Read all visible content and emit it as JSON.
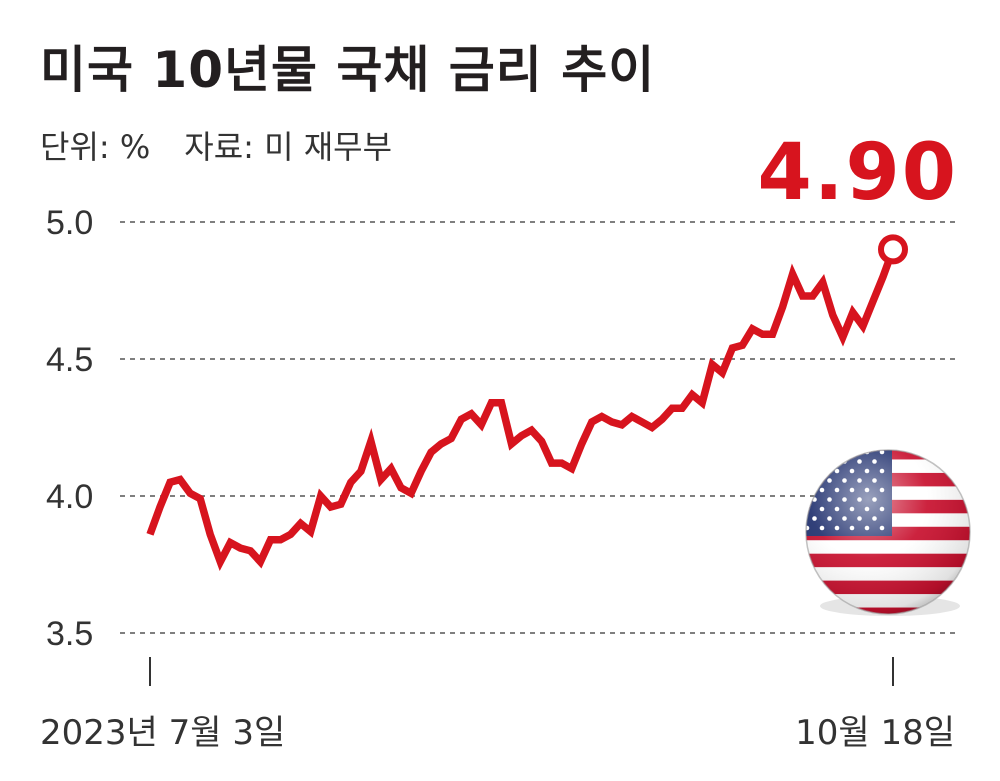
{
  "title": "미국 10년물 국채 금리 추이",
  "unit_label": "단위: %",
  "source_label": "자료: 미 재무부",
  "highlight_value": "4.90",
  "icon": "us-flag-icon",
  "colors": {
    "line": "#d7141e",
    "text": "#231f20",
    "highlight": "#d7141e"
  },
  "chart_data": {
    "type": "line",
    "title": "미국 10년물 국채 금리 추이",
    "ylim": [
      3.5,
      5.0
    ],
    "yticks": [
      "5.0",
      "4.5",
      "4.0",
      "3.5"
    ],
    "ytick_values": [
      5.0,
      4.5,
      4.0,
      3.5
    ],
    "xtick_labels": [
      "2023년 7월 3일",
      "10월 18일"
    ],
    "grid": "horizontal dashed",
    "series": [
      {
        "values": [
          3.86,
          3.96,
          4.05,
          4.06,
          4.01,
          3.99,
          3.86,
          3.76,
          3.83,
          3.81,
          3.8,
          3.76,
          3.84,
          3.84,
          3.86,
          3.9,
          3.87,
          4.0,
          3.96,
          3.97,
          4.05,
          4.09,
          4.2,
          4.06,
          4.1,
          4.03,
          4.01,
          4.09,
          4.16,
          4.19,
          4.21,
          4.28,
          4.3,
          4.26,
          4.34,
          4.34,
          4.19,
          4.22,
          4.24,
          4.2,
          4.12,
          4.12,
          4.1,
          4.19,
          4.27,
          4.29,
          4.27,
          4.26,
          4.29,
          4.27,
          4.25,
          4.28,
          4.32,
          4.32,
          4.37,
          4.34,
          4.48,
          4.45,
          4.54,
          4.55,
          4.61,
          4.59,
          4.59,
          4.69,
          4.81,
          4.73,
          4.73,
          4.78,
          4.66,
          4.58,
          4.67,
          4.62,
          4.71,
          4.8,
          4.9
        ]
      }
    ],
    "last_value": 4.9
  }
}
